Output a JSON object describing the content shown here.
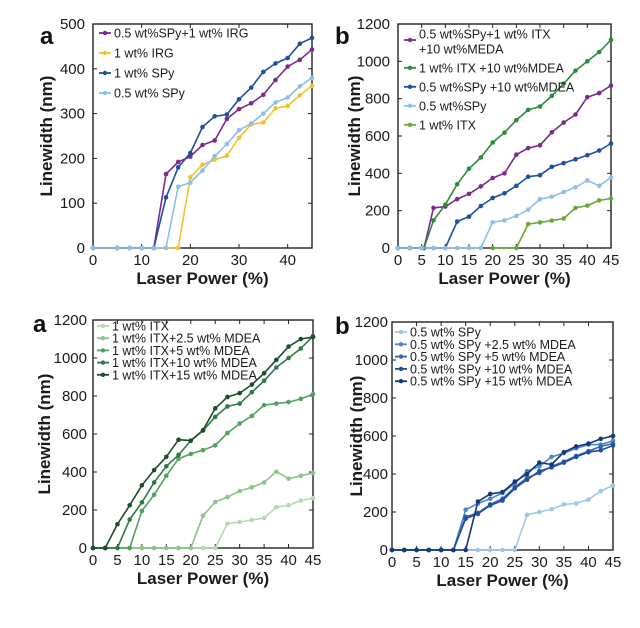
{
  "chart_data": [
    {
      "id": "top-left",
      "panel_label": "a",
      "type": "line",
      "xlabel": "Laser Power (%)",
      "ylabel": "Linewidth (nm)",
      "xlim": [
        0,
        45
      ],
      "ylim": [
        0,
        500
      ],
      "xticks": [
        0,
        10,
        20,
        30,
        40
      ],
      "yticks": [
        0,
        100,
        200,
        300,
        400,
        500
      ],
      "legend_position": "top-left",
      "series": [
        {
          "name": "0.5 wt%SPy+1 wt% IRG",
          "color": "#7b2a8e",
          "x": [
            0,
            5,
            7.5,
            10,
            12.5,
            15,
            17.5,
            20,
            22.5,
            25,
            27.5,
            30,
            32.5,
            35,
            37.5,
            40,
            42.5,
            45
          ],
          "y": [
            0,
            0,
            0,
            0,
            0,
            165,
            192,
            204,
            230,
            240,
            288,
            310,
            323,
            342,
            375,
            405,
            420,
            443
          ]
        },
        {
          "name": "1 wt% IRG",
          "color": "#f2c12e",
          "x": [
            0,
            5,
            7.5,
            10,
            12.5,
            15,
            17.5,
            20,
            22.5,
            25,
            27.5,
            30,
            32.5,
            35,
            37.5,
            40,
            42.5,
            45
          ],
          "y": [
            0,
            0,
            0,
            0,
            0,
            0,
            0,
            158,
            186,
            197,
            206,
            246,
            276,
            280,
            312,
            317,
            341,
            362
          ]
        },
        {
          "name": "1 wt% SPy",
          "color": "#1f4fa0",
          "x": [
            0,
            5,
            7.5,
            10,
            12.5,
            15,
            17.5,
            20,
            22.5,
            25,
            27.5,
            30,
            32.5,
            35,
            37.5,
            40,
            42.5,
            45
          ],
          "y": [
            0,
            0,
            0,
            0,
            0,
            113,
            180,
            212,
            270,
            294,
            298,
            332,
            358,
            393,
            412,
            424,
            456,
            469
          ]
        },
        {
          "name": "0.5 wt% SPy",
          "color": "#8ebfe8",
          "x": [
            0,
            5,
            7.5,
            10,
            12.5,
            15,
            17.5,
            20,
            22.5,
            25,
            27.5,
            30,
            32.5,
            35,
            37.5,
            40,
            42.5,
            45
          ],
          "y": [
            0,
            0,
            0,
            0,
            0,
            0,
            137,
            146,
            173,
            205,
            232,
            263,
            278,
            300,
            325,
            336,
            361,
            380
          ]
        }
      ]
    },
    {
      "id": "top-right",
      "panel_label": "b",
      "type": "line",
      "xlabel": "Laser Power (%)",
      "ylabel": "Linewidth (nm)",
      "xlim": [
        0,
        45
      ],
      "ylim": [
        0,
        1200
      ],
      "xticks": [
        0,
        5,
        10,
        15,
        20,
        25,
        30,
        35,
        40,
        45
      ],
      "yticks": [
        0,
        200,
        400,
        600,
        800,
        1000,
        1200
      ],
      "legend_position": "top-left",
      "series": [
        {
          "name": "0.5 wt%SPy+1 wt% ITX +10 wt%MEDA",
          "legend_lines": [
            "0.5 wt%SPy+1 wt% ITX",
            " +10 wt%MEDA"
          ],
          "color": "#7b2a8e",
          "x": [
            0,
            2.5,
            5.5,
            7.5,
            10,
            12.5,
            15,
            17.5,
            20,
            22.5,
            25,
            27.5,
            30,
            32.5,
            35,
            37.5,
            40,
            42.5,
            45
          ],
          "y": [
            0,
            0,
            0,
            215,
            222,
            262,
            290,
            330,
            375,
            400,
            500,
            535,
            550,
            620,
            672,
            715,
            808,
            830,
            870
          ]
        },
        {
          "name": "1 wt% ITX +10 wt%MDEA",
          "legend_lines": [
            "1 wt% ITX +10 wt%MDEA"
          ],
          "color": "#2e8b3e",
          "x": [
            0,
            2.5,
            5.5,
            7.5,
            10,
            12.5,
            15,
            17.5,
            20,
            22.5,
            25,
            27.5,
            30,
            32.5,
            35,
            37.5,
            40,
            42.5,
            45
          ],
          "y": [
            0,
            0,
            0,
            148,
            232,
            342,
            425,
            485,
            565,
            618,
            685,
            740,
            758,
            815,
            880,
            950,
            1000,
            1050,
            1115
          ]
        },
        {
          "name": "0.5 wt%SPy +10 wt%MDEA",
          "legend_lines": [
            "0.5 wt%SPy +10 wt%MDEA"
          ],
          "color": "#1f4fa0",
          "x": [
            0,
            2.5,
            5,
            7.5,
            10,
            12.5,
            15,
            17.5,
            20,
            22.5,
            25,
            27.5,
            30,
            32.5,
            35,
            37.5,
            40,
            42.5,
            45
          ],
          "y": [
            0,
            0,
            0,
            0,
            0,
            142,
            168,
            225,
            268,
            293,
            333,
            382,
            390,
            435,
            455,
            475,
            497,
            522,
            560
          ]
        },
        {
          "name": "0.5 wt%SPy",
          "legend_lines": [
            "0.5 wt%SPy"
          ],
          "color": "#8ebfe8",
          "x": [
            0,
            2.5,
            5,
            7.5,
            10,
            12.5,
            15,
            17.5,
            20,
            22.5,
            25,
            27.5,
            30,
            32.5,
            35,
            37.5,
            40,
            42.5,
            45
          ],
          "y": [
            0,
            0,
            0,
            0,
            0,
            0,
            0,
            0,
            138,
            148,
            172,
            205,
            262,
            275,
            300,
            325,
            362,
            333,
            378
          ]
        },
        {
          "name": "1 wt% ITX",
          "legend_lines": [
            "1 wt% ITX"
          ],
          "color": "#6aa83a",
          "x": [
            20,
            25,
            27.5,
            30,
            32.5,
            35,
            37.5,
            40,
            42.5,
            45
          ],
          "y": [
            0,
            0,
            128,
            137,
            147,
            158,
            215,
            227,
            255,
            265
          ]
        }
      ]
    },
    {
      "id": "bottom-left",
      "panel_label": "a",
      "type": "line",
      "xlabel": "Laser Power (%)",
      "ylabel": "Linewidth (nm)",
      "xlim": [
        0,
        45
      ],
      "ylim": [
        0,
        1200
      ],
      "xticks": [
        0,
        5,
        10,
        15,
        20,
        25,
        30,
        35,
        40,
        45
      ],
      "yticks": [
        0,
        200,
        400,
        600,
        800,
        1000,
        1200
      ],
      "legend_position": "top-left",
      "series": [
        {
          "name": "1 wt% ITX",
          "color": "#b4d9b4",
          "x": [
            0,
            2.5,
            5,
            7.5,
            10,
            12.5,
            15,
            17.5,
            20,
            22.5,
            25,
            27.5,
            30,
            32.5,
            35,
            37.5,
            40,
            42.5,
            45
          ],
          "y": [
            0,
            0,
            0,
            0,
            0,
            0,
            0,
            0,
            0,
            0,
            0,
            128,
            137,
            147,
            158,
            215,
            225,
            250,
            262
          ]
        },
        {
          "name": "1 wt% ITX+2.5 wt% MDEA",
          "color": "#8cc48c",
          "x": [
            0,
            2.5,
            5,
            7.5,
            10,
            12.5,
            15,
            17.5,
            20,
            22.5,
            25,
            27.5,
            30,
            32.5,
            35,
            37.5,
            40,
            42.5,
            45
          ],
          "y": [
            0,
            0,
            0,
            0,
            0,
            0,
            0,
            0,
            0,
            170,
            242,
            268,
            300,
            320,
            345,
            402,
            365,
            380,
            395
          ]
        },
        {
          "name": "1 wt% ITX+5 wt% MDEA",
          "color": "#52a15e",
          "x": [
            0,
            2.5,
            5,
            7.5,
            10,
            12.5,
            15,
            17.5,
            20,
            22.5,
            25,
            27.5,
            30,
            32.5,
            35,
            37.5,
            40,
            42.5,
            45
          ],
          "y": [
            0,
            0,
            0,
            0,
            195,
            280,
            380,
            470,
            495,
            515,
            540,
            605,
            655,
            695,
            752,
            760,
            768,
            785,
            810
          ]
        },
        {
          "name": "1 wt% ITX+10 wt% MDEA",
          "color": "#2f7a46",
          "x": [
            0,
            2.5,
            5,
            7.5,
            10,
            12.5,
            15,
            17.5,
            20,
            22.5,
            25,
            27.5,
            30,
            32.5,
            35,
            37.5,
            40,
            42.5,
            45
          ],
          "y": [
            0,
            0,
            0,
            150,
            240,
            345,
            430,
            490,
            565,
            618,
            690,
            745,
            760,
            820,
            880,
            950,
            1000,
            1050,
            1115
          ]
        },
        {
          "name": "1 wt% ITX+15 wt% MDEA",
          "color": "#1c4d2c",
          "x": [
            0,
            2.5,
            5,
            7.5,
            10,
            12.5,
            15,
            17.5,
            20,
            22.5,
            25,
            27.5,
            30,
            32.5,
            35,
            37.5,
            40,
            42.5,
            45
          ],
          "y": [
            0,
            0,
            125,
            225,
            330,
            410,
            480,
            570,
            565,
            620,
            735,
            795,
            815,
            860,
            920,
            990,
            1060,
            1100,
            1110
          ]
        }
      ]
    },
    {
      "id": "bottom-right",
      "panel_label": "b",
      "type": "line",
      "xlabel": "Laser Power (%)",
      "ylabel": "Linewidth (nm)",
      "xlim": [
        0,
        45
      ],
      "ylim": [
        0,
        1200
      ],
      "xticks": [
        0,
        5,
        10,
        15,
        20,
        25,
        30,
        35,
        40,
        45
      ],
      "yticks": [
        0,
        200,
        400,
        600,
        800,
        1000,
        1200
      ],
      "legend_position": "top-left",
      "series": [
        {
          "name": "0.5 wt% SPy",
          "color": "#9cc8ea",
          "x": [
            0,
            2.5,
            5,
            7.5,
            10,
            12.5,
            15,
            17.5,
            20,
            22.5,
            25,
            27.5,
            30,
            32.5,
            35,
            37.5,
            40,
            42.5,
            45
          ],
          "y": [
            0,
            0,
            0,
            0,
            0,
            0,
            0,
            0,
            0,
            0,
            0,
            185,
            200,
            215,
            240,
            245,
            265,
            310,
            340
          ]
        },
        {
          "name": "0.5 wt% SPy +2.5 wt% MDEA",
          "color": "#4f86c6",
          "x": [
            0,
            2.5,
            5,
            7.5,
            10,
            12.5,
            15,
            17.5,
            20,
            22.5,
            25,
            27.5,
            30,
            32.5,
            35,
            37.5,
            40,
            42.5,
            45
          ],
          "y": [
            0,
            0,
            0,
            0,
            0,
            0,
            212,
            245,
            270,
            300,
            350,
            415,
            440,
            490,
            510,
            535,
            555,
            555,
            575
          ]
        },
        {
          "name": "0.5 wt% SPy +5 wt% MDEA",
          "color": "#3468ad",
          "x": [
            0,
            2.5,
            5,
            7.5,
            10,
            12.5,
            15,
            17.5,
            20,
            22.5,
            25,
            27.5,
            30,
            32.5,
            35,
            37.5,
            40,
            42.5,
            45
          ],
          "y": [
            0,
            0,
            0,
            0,
            0,
            0,
            175,
            195,
            240,
            270,
            330,
            380,
            405,
            440,
            465,
            495,
            520,
            545,
            560
          ]
        },
        {
          "name": "0.5 wt% SPy +10 wt% MDEA",
          "color": "#21509a",
          "x": [
            0,
            2.5,
            5,
            7.5,
            10,
            12.5,
            15,
            17.5,
            20,
            22.5,
            25,
            27.5,
            30,
            32.5,
            35,
            37.5,
            40,
            42.5,
            45
          ],
          "y": [
            0,
            0,
            0,
            0,
            0,
            0,
            165,
            190,
            235,
            260,
            325,
            370,
            415,
            435,
            460,
            490,
            515,
            525,
            550
          ]
        },
        {
          "name": "0.5 wt% SPy +15 wt% MDEA",
          "color": "#15387a",
          "x": [
            0,
            2.5,
            5,
            7.5,
            10,
            12.5,
            15,
            17.5,
            20,
            22.5,
            25,
            27.5,
            30,
            32.5,
            35,
            37.5,
            40,
            42.5,
            45
          ],
          "y": [
            0,
            0,
            0,
            0,
            0,
            0,
            0,
            255,
            295,
            305,
            360,
            400,
            460,
            450,
            515,
            545,
            560,
            585,
            600
          ]
        }
      ]
    }
  ]
}
